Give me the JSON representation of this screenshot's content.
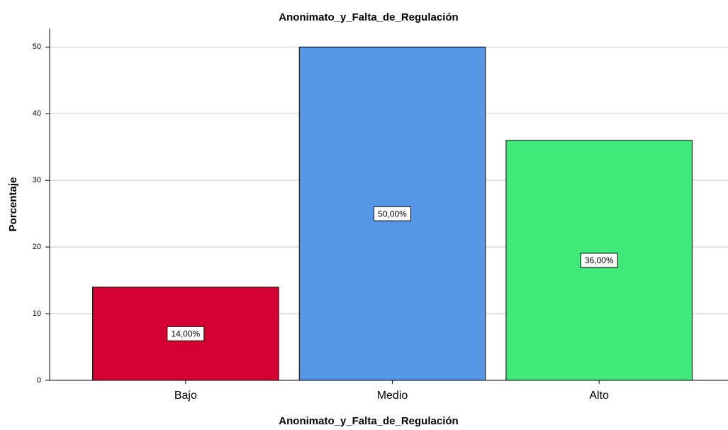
{
  "chart_data": {
    "type": "bar",
    "title": "Anonimato_y_Falta_de_Regulación",
    "x_label": "Anonimato_y_Falta_de_Regulación",
    "y_label": "Porcentaje",
    "categories": [
      "Bajo",
      "Medio",
      "Alto"
    ],
    "values": [
      14,
      50,
      36
    ],
    "value_labels": [
      "14,00%",
      "50,00%",
      "36,00%"
    ],
    "colors": [
      "#d50032",
      "#5596e6",
      "#41e97a"
    ],
    "ylim": [
      0,
      52.8
    ],
    "yticks": [
      0,
      10,
      20,
      30,
      40,
      50
    ],
    "grid": true
  }
}
